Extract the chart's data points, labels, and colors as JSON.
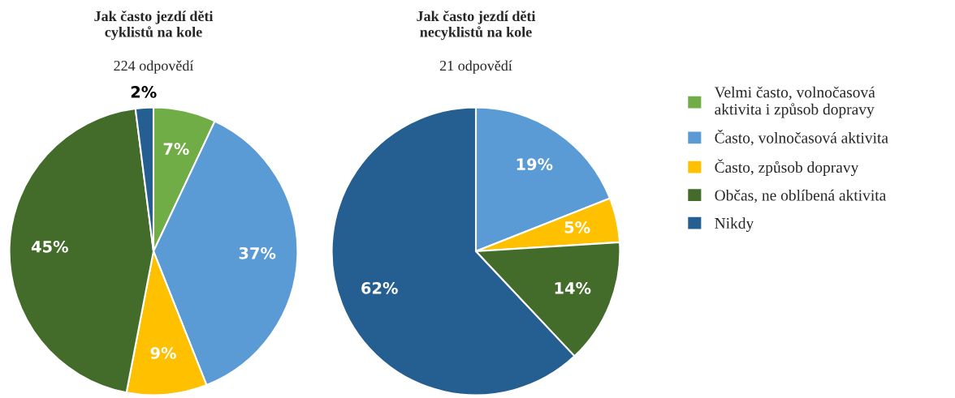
{
  "chart_data": [
    {
      "type": "pie",
      "title": "Jak často jezdí děti\ncyklistů na kole",
      "subtitle": "224 odpovědí",
      "categories": [
        "Velmi často, volnočasová\naktivita i způsob dopravy",
        "Často, volnočasová aktivita",
        "Často, způsob dopravy",
        "Občas, ne oblíbená aktivita",
        "Nikdy"
      ],
      "values": [
        7,
        37,
        9,
        45,
        2
      ],
      "colors": [
        "#70ad47",
        "#5b9bd5",
        "#ffc000",
        "#436c2b",
        "#255e91"
      ],
      "value_labels": [
        "7%",
        "37%",
        "9%",
        "45%",
        "2%"
      ],
      "legend": "right"
    },
    {
      "type": "pie",
      "title": "Jak často jezdí děti\nnecyklistů na kole",
      "subtitle": "21 odpovědí",
      "categories": [
        null,
        null,
        null,
        null,
        null
      ],
      "values": [
        0,
        19,
        5,
        14,
        62
      ],
      "colors": [
        "#70ad47",
        "#5b9bd5",
        "#ffc000",
        "#436c2b",
        "#255e91"
      ],
      "value_labels": [
        null,
        "19%",
        "5%",
        "14%",
        "62%"
      ],
      "legend": false
    }
  ]
}
